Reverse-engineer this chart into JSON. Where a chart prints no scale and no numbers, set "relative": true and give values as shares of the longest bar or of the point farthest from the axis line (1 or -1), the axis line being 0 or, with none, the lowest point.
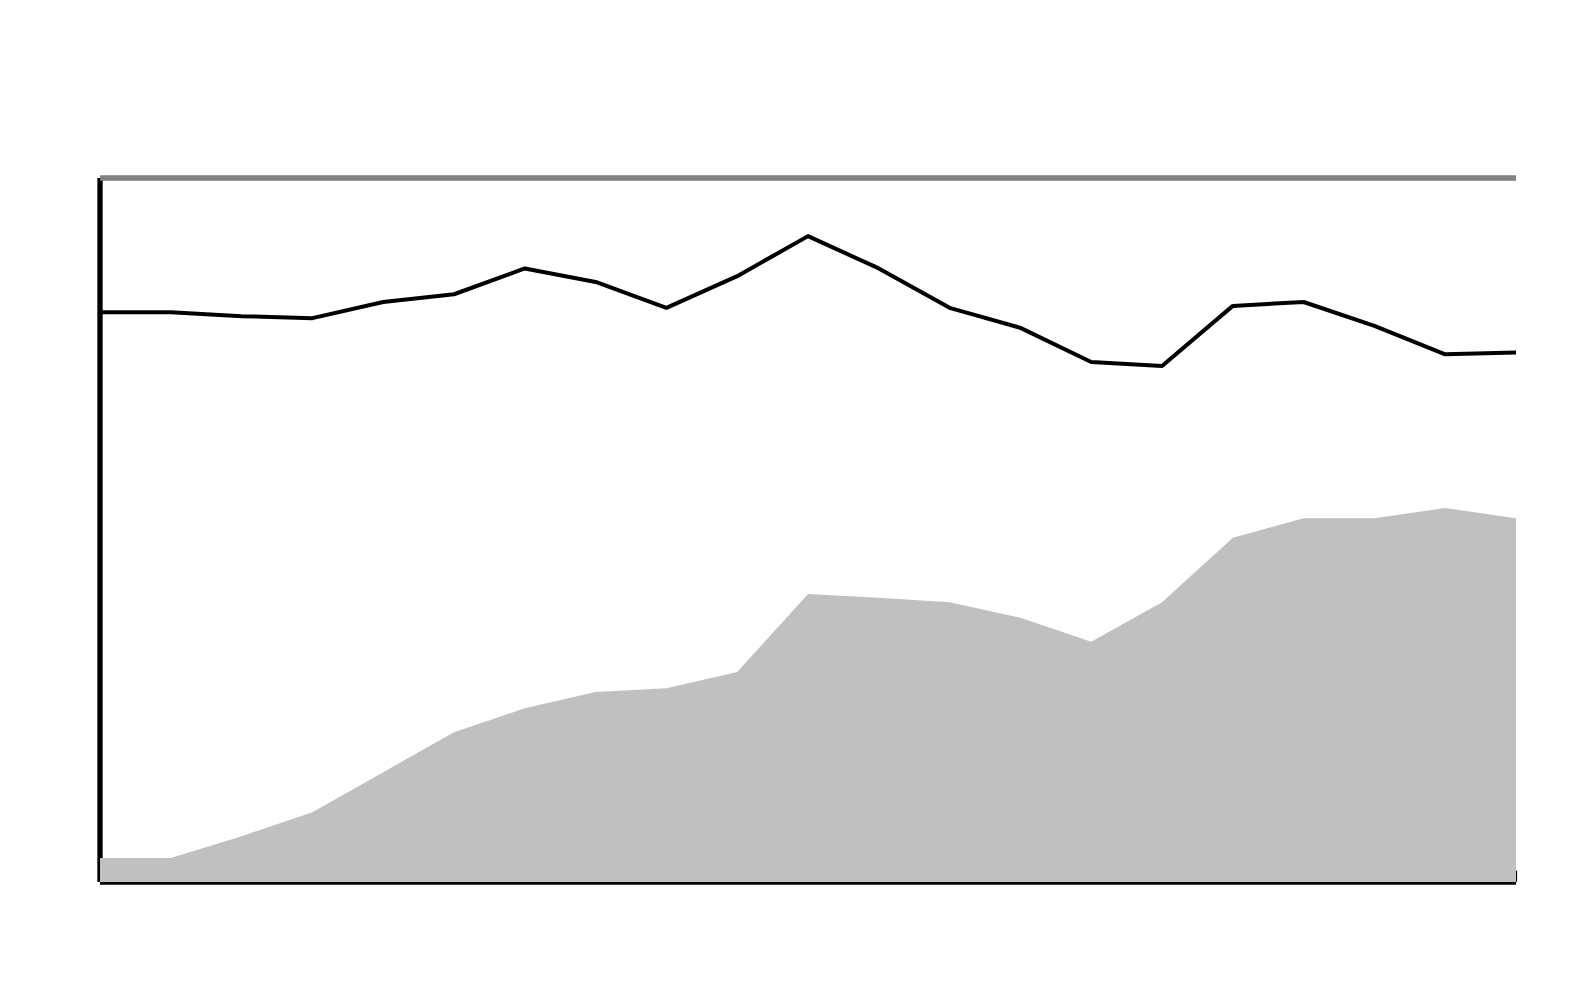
{
  "chart_data": {
    "type": "line",
    "relative": true,
    "categories": [
      null,
      null,
      null,
      null,
      null,
      null,
      null,
      null,
      null,
      null,
      null,
      null,
      null,
      null,
      null,
      null,
      null,
      null,
      null,
      null,
      null
    ],
    "series": [
      {
        "type": "area",
        "color": "#c0c0c0",
        "values": [
          0.037,
          0.037,
          0.071,
          0.108,
          0.17,
          0.232,
          0.269,
          0.294,
          0.3,
          0.325,
          0.446,
          0.44,
          0.433,
          0.409,
          0.372,
          0.433,
          0.533,
          0.563,
          0.563,
          0.579,
          0.563
        ]
      },
      {
        "type": "line",
        "color": "#000000",
        "values": [
          0.882,
          0.882,
          0.876,
          0.873,
          0.898,
          0.91,
          0.95,
          0.929,
          0.889,
          0.938,
          1.0,
          0.95,
          0.889,
          0.858,
          0.805,
          0.799,
          0.892,
          0.898,
          0.861,
          0.817,
          0.82
        ]
      }
    ]
  }
}
